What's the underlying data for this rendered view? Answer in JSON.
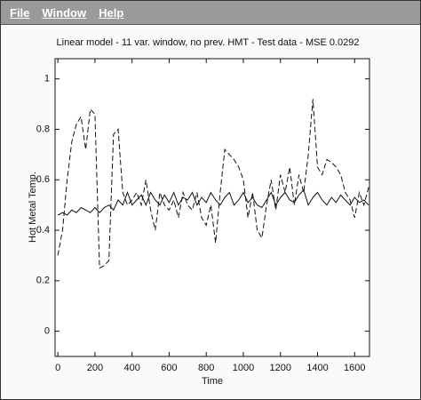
{
  "menu": [
    "File",
    "Window",
    "Help"
  ],
  "chart_data": {
    "type": "line",
    "title": "Linear model - 11 var. window, no prev. HMT - Test data -   MSE 0.0292",
    "x_label": "Time",
    "y_label": "Hot Metal Temp.",
    "x": [
      0,
      25,
      50,
      75,
      100,
      125,
      150,
      175,
      200,
      225,
      250,
      275,
      300,
      325,
      350,
      375,
      400,
      425,
      450,
      475,
      500,
      525,
      550,
      575,
      600,
      625,
      650,
      675,
      700,
      725,
      750,
      775,
      800,
      825,
      850,
      875,
      900,
      925,
      950,
      975,
      1000,
      1025,
      1050,
      1075,
      1100,
      1125,
      1150,
      1175,
      1200,
      1225,
      1250,
      1275,
      1300,
      1325,
      1350,
      1375,
      1400,
      1425,
      1450,
      1475,
      1500,
      1525,
      1550,
      1575,
      1600,
      1625,
      1650,
      1675
    ],
    "series": [
      {
        "color": "#111111",
        "dash": "solid",
        "values": [
          0.46,
          0.47,
          0.46,
          0.48,
          0.47,
          0.49,
          0.48,
          0.47,
          0.49,
          0.47,
          0.49,
          0.5,
          0.48,
          0.52,
          0.5,
          0.55,
          0.5,
          0.52,
          0.54,
          0.5,
          0.55,
          0.52,
          0.5,
          0.54,
          0.51,
          0.55,
          0.5,
          0.53,
          0.52,
          0.55,
          0.5,
          0.53,
          0.51,
          0.55,
          0.52,
          0.5,
          0.53,
          0.55,
          0.5,
          0.52,
          0.55,
          0.51,
          0.53,
          0.5,
          0.49,
          0.52,
          0.55,
          0.5,
          0.53,
          0.55,
          0.52,
          0.51,
          0.54,
          0.56,
          0.5,
          0.53,
          0.55,
          0.52,
          0.5,
          0.53,
          0.51,
          0.54,
          0.52,
          0.5,
          0.53,
          0.51,
          0.52,
          0.5
        ]
      },
      {
        "color": "#111111",
        "dash": "dashed",
        "values": [
          0.3,
          0.4,
          0.6,
          0.75,
          0.82,
          0.85,
          0.72,
          0.88,
          0.86,
          0.25,
          0.26,
          0.28,
          0.78,
          0.8,
          0.55,
          0.5,
          0.52,
          0.55,
          0.5,
          0.6,
          0.48,
          0.4,
          0.55,
          0.5,
          0.48,
          0.52,
          0.45,
          0.55,
          0.5,
          0.48,
          0.55,
          0.45,
          0.42,
          0.5,
          0.35,
          0.55,
          0.72,
          0.7,
          0.68,
          0.65,
          0.6,
          0.45,
          0.55,
          0.4,
          0.37,
          0.5,
          0.6,
          0.48,
          0.62,
          0.55,
          0.65,
          0.5,
          0.62,
          0.55,
          0.7,
          0.92,
          0.65,
          0.62,
          0.68,
          0.67,
          0.65,
          0.62,
          0.55,
          0.52,
          0.45,
          0.55,
          0.5,
          0.57
        ]
      }
    ],
    "xlim": [
      -15,
      1680
    ],
    "xticks": [
      0,
      200,
      400,
      600,
      800,
      1000,
      1200,
      1400,
      1600
    ],
    "ylim": [
      -0.1,
      1.08
    ],
    "yticks": [
      0,
      0.2,
      0.4,
      0.6,
      0.8,
      1
    ],
    "grid": false
  }
}
